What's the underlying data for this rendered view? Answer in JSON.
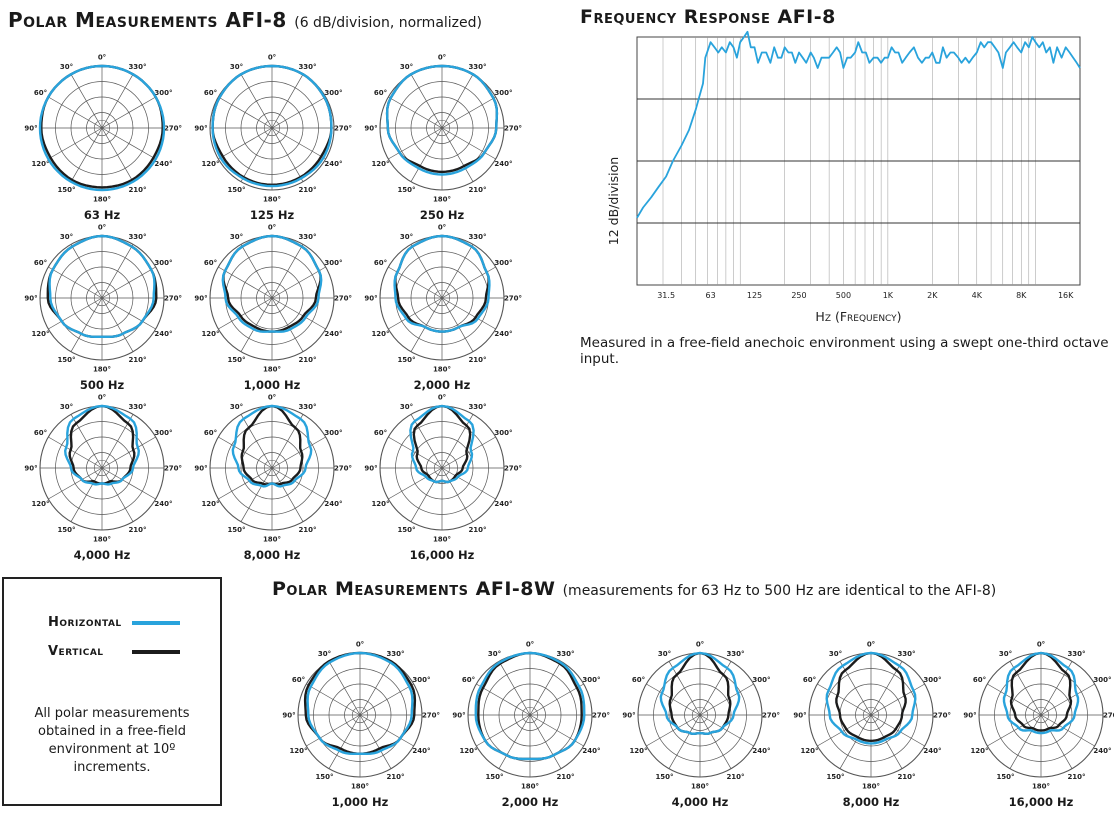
{
  "titles": {
    "afi8_polar": "Polar Measurements AFI-8",
    "afi8_polar_sub": "(6 dB/division, normalized)",
    "freq_response": "Frequency Response AFI-8",
    "afi8w_polar": "Polar Measurements AFI-8W",
    "afi8w_polar_sub": "(measurements for 63 Hz to 500 Hz are identical to the AFI-8)"
  },
  "angle_labels": [
    "0°",
    "30°",
    "60°",
    "90°",
    "120°",
    "150°",
    "180°",
    "210°",
    "240°",
    "270°",
    "300°",
    "330°"
  ],
  "legend": {
    "horizontal_label": "Horizontal",
    "vertical_label": "Vertical",
    "note": "All polar measurements obtained in a free-field environment at 10º increments.",
    "colors": {
      "horizontal": "#29a3dc",
      "vertical": "#1c1c1c"
    }
  },
  "freq_note": "Measured in a free-field anechoic environment using a swept one-third octave input.",
  "chart_data": [
    {
      "type": "line",
      "title": "Frequency Response AFI-8",
      "xlabel": "Hz (Frequency)",
      "ylabel": "12 dB/division",
      "x_scale": "log",
      "x_ticks": [
        "31.5",
        "63",
        "125",
        "250",
        "500",
        "1K",
        "2K",
        "4K",
        "8K",
        "16K"
      ],
      "x_tick_values": [
        31.5,
        63,
        125,
        250,
        500,
        1000,
        2000,
        4000,
        8000,
        16000
      ],
      "xlim": [
        20,
        20000
      ],
      "ylim": [
        -48,
        0
      ],
      "y_gridlines": [
        -12,
        -24,
        -36
      ],
      "series": [
        {
          "color": "#29a3dc",
          "x": [
            20,
            22,
            25,
            28,
            31.5,
            35,
            40,
            45,
            50,
            56,
            58,
            63,
            67,
            71,
            75,
            80,
            85,
            90,
            95,
            100,
            106,
            112,
            118,
            125,
            132,
            140,
            150,
            160,
            170,
            180,
            190,
            200,
            212,
            224,
            236,
            250,
            265,
            280,
            300,
            315,
            335,
            355,
            375,
            400,
            425,
            450,
            475,
            500,
            530,
            560,
            600,
            630,
            670,
            710,
            750,
            800,
            850,
            900,
            950,
            1000,
            1060,
            1120,
            1180,
            1250,
            1320,
            1400,
            1500,
            1600,
            1700,
            1800,
            1900,
            2000,
            2120,
            2240,
            2360,
            2500,
            2650,
            2800,
            3000,
            3150,
            3350,
            3550,
            3750,
            4000,
            4250,
            4500,
            4750,
            5000,
            5300,
            5600,
            6000,
            6300,
            6700,
            7100,
            7500,
            8000,
            8500,
            9000,
            9500,
            10000,
            10600,
            11200,
            11800,
            12500,
            13200,
            14000,
            15000,
            16000,
            17000,
            18000,
            19000,
            20000
          ],
          "y": [
            -35,
            -33,
            -31,
            -29,
            -27,
            -24,
            -21,
            -18,
            -14,
            -9,
            -4,
            -1,
            -2,
            -3,
            -2,
            -3,
            -1,
            -2,
            -4,
            -1,
            0,
            1,
            -2,
            -2,
            -5,
            -3,
            -3,
            -5,
            -2,
            -4,
            -4,
            -2,
            -3,
            -3,
            -5,
            -3,
            -4,
            -5,
            -3,
            -4,
            -6,
            -4,
            -4,
            -4,
            -3,
            -2,
            -3,
            -6,
            -4,
            -4,
            -3,
            -1,
            -3,
            -3,
            -5,
            -4,
            -4,
            -5,
            -4,
            -4,
            -2,
            -3,
            -3,
            -5,
            -4,
            -3,
            -2,
            -4,
            -5,
            -4,
            -4,
            -3,
            -5,
            -5,
            -2,
            -4,
            -3,
            -3,
            -4,
            -5,
            -4,
            -5,
            -4,
            -3,
            -1,
            -2,
            -1,
            -1,
            -2,
            -3,
            -6,
            -3,
            -2,
            -1,
            -2,
            -3,
            -1,
            -2,
            0,
            -1,
            -2,
            -1,
            -3,
            -2,
            -5,
            -2,
            -4,
            -2,
            -3,
            -4,
            -5,
            -6
          ]
        }
      ]
    },
    {
      "type": "polar",
      "title": "Polar Measurements AFI-8",
      "units": "6 dB/division, normalized",
      "angles_deg": [
        0,
        30,
        60,
        90,
        120,
        150,
        180,
        210,
        240,
        270,
        300,
        330
      ],
      "plots": [
        {
          "freq": "63 Hz",
          "horizontal": [
            0,
            0,
            0,
            0,
            0,
            0,
            0,
            0,
            0,
            0,
            0,
            0
          ],
          "vertical": [
            0,
            0,
            0,
            -0.5,
            -1,
            -0.8,
            -1,
            -0.8,
            -1,
            -0.5,
            0,
            0
          ]
        },
        {
          "freq": "125 Hz",
          "horizontal": [
            0,
            0,
            -0.5,
            -1,
            -1,
            -1.5,
            -1.5,
            -1.5,
            -1,
            -1,
            -0.5,
            0
          ],
          "vertical": [
            0,
            0,
            -0.5,
            -1,
            -2,
            -2,
            -2,
            -2,
            -2,
            -1,
            -0.5,
            0
          ]
        },
        {
          "freq": "250 Hz",
          "horizontal": [
            0,
            0,
            -1,
            -3,
            -5,
            -6,
            -6,
            -6,
            -5,
            -3,
            -1,
            0
          ],
          "vertical": [
            0,
            0,
            -1,
            -3,
            -5,
            -7,
            -7,
            -7,
            -5,
            -3,
            -1,
            0
          ]
        },
        {
          "freq": "500 Hz",
          "horizontal": [
            0,
            -1,
            -2,
            -4,
            -6,
            -8,
            -9,
            -8,
            -6,
            -4,
            -2,
            -1
          ],
          "vertical": [
            0,
            -1,
            -2,
            -3,
            -6,
            -8,
            -9,
            -8,
            -6,
            -3,
            -2,
            -1
          ]
        },
        {
          "freq": "1,000 Hz",
          "horizontal": [
            0,
            -1,
            -3,
            -6,
            -9,
            -10,
            -11,
            -10,
            -9,
            -6,
            -3,
            -1
          ],
          "vertical": [
            0,
            -1,
            -3,
            -7,
            -10,
            -11,
            -11,
            -11,
            -10,
            -7,
            -3,
            -1
          ]
        },
        {
          "freq": "2,000 Hz",
          "horizontal": [
            0,
            -1,
            -4,
            -6,
            -8,
            -11,
            -11,
            -11,
            -8,
            -6,
            -4,
            -1
          ],
          "vertical": [
            0,
            -1,
            -4,
            -7,
            -9,
            -11,
            -11,
            -11,
            -9,
            -7,
            -4,
            -1
          ]
        },
        {
          "freq": "4,000 Hz",
          "horizontal": [
            0,
            -2,
            -8,
            -12,
            -15,
            -17,
            -18,
            -17,
            -15,
            -12,
            -8,
            -2
          ],
          "vertical": [
            0,
            -4,
            -10,
            -13,
            -15,
            -18,
            -18,
            -18,
            -15,
            -13,
            -10,
            -4
          ]
        },
        {
          "freq": "8,000 Hz",
          "horizontal": [
            0,
            -2,
            -7,
            -11,
            -14,
            -16,
            -18,
            -16,
            -14,
            -11,
            -7,
            -2
          ],
          "vertical": [
            0,
            -6,
            -11,
            -13,
            -15,
            -17,
            -18,
            -17,
            -15,
            -13,
            -11,
            -6
          ]
        },
        {
          "freq": "16,000 Hz",
          "horizontal": [
            0,
            -3,
            -11,
            -14,
            -17,
            -18,
            -19,
            -18,
            -17,
            -14,
            -11,
            -3
          ],
          "vertical": [
            0,
            -5,
            -13,
            -16,
            -18,
            -18,
            -19,
            -18,
            -18,
            -16,
            -13,
            -5
          ]
        }
      ]
    },
    {
      "type": "polar",
      "title": "Polar Measurements AFI-8W",
      "angles_deg": [
        0,
        30,
        60,
        90,
        120,
        150,
        180,
        210,
        240,
        270,
        300,
        330
      ],
      "plots": [
        {
          "freq": "1,000 Hz",
          "horizontal": [
            0,
            -0.5,
            -2,
            -4,
            -6,
            -8,
            -9,
            -8,
            -6,
            -4,
            -2,
            -0.5
          ],
          "vertical": [
            0,
            0,
            -1,
            -3,
            -6,
            -9,
            -9,
            -9,
            -6,
            -3,
            -1,
            0
          ]
        },
        {
          "freq": "2,000 Hz",
          "horizontal": [
            0,
            -0.5,
            -2,
            -3,
            -4,
            -6,
            -7,
            -6,
            -4,
            -3,
            -2,
            -0.5
          ],
          "vertical": [
            0,
            -1,
            -3,
            -4,
            -4,
            -6,
            -7,
            -6,
            -4,
            -4,
            -3,
            -1
          ]
        },
        {
          "freq": "4,000 Hz",
          "horizontal": [
            0,
            -3,
            -7,
            -11,
            -14,
            -16,
            -17,
            -16,
            -14,
            -11,
            -7,
            -3
          ],
          "vertical": [
            0,
            -6,
            -11,
            -13,
            -14,
            -16,
            -17,
            -16,
            -14,
            -13,
            -11,
            -6
          ]
        },
        {
          "freq": "8,000 Hz",
          "horizontal": [
            0,
            -2,
            -5,
            -8,
            -11,
            -13,
            -13,
            -13,
            -11,
            -8,
            -5,
            -2
          ],
          "vertical": [
            0,
            -4,
            -9,
            -12,
            -13,
            -14,
            -14,
            -14,
            -13,
            -12,
            -9,
            -4
          ]
        },
        {
          "freq": "16,000 Hz",
          "horizontal": [
            0,
            -3,
            -8,
            -11,
            -14,
            -17,
            -17,
            -17,
            -14,
            -11,
            -8,
            -3
          ],
          "vertical": [
            0,
            -5,
            -11,
            -14,
            -16,
            -18,
            -18,
            -18,
            -16,
            -14,
            -11,
            -5
          ]
        }
      ]
    }
  ]
}
